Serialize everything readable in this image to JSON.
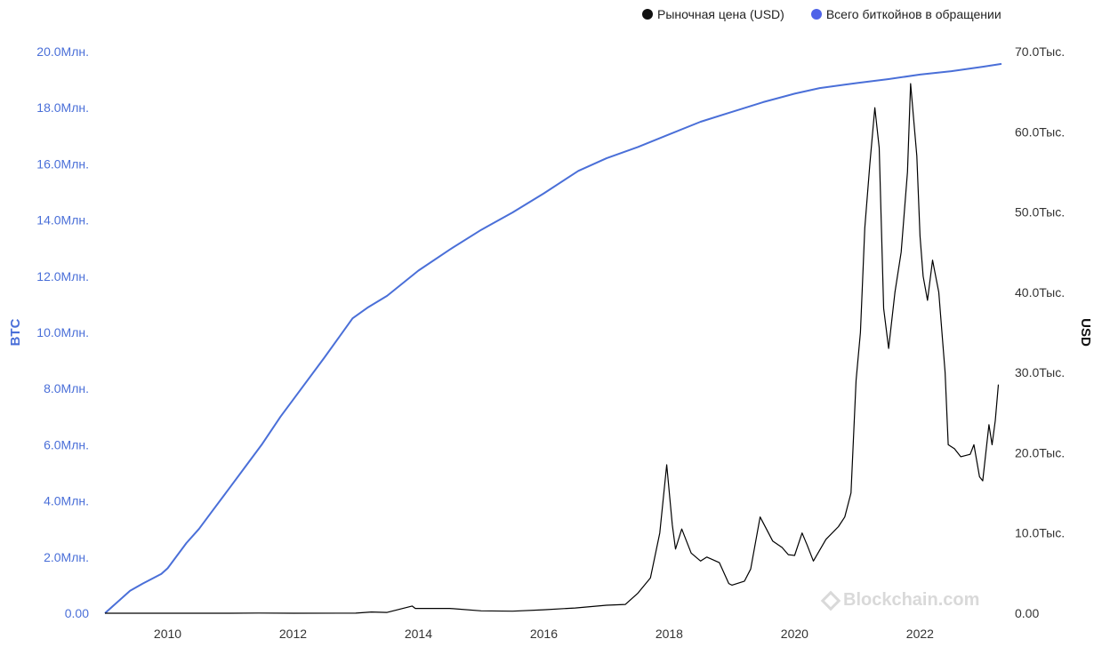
{
  "legend": {
    "price_label": "Рыночная цена (USD)",
    "supply_label": "Всего биткойнов в обращении"
  },
  "watermark": {
    "text": "Blockchain.com"
  },
  "colors": {
    "supply": "#4a6fd8",
    "price": "#000000",
    "left_axis": "#4a6fd8",
    "right_axis": "#333333"
  },
  "chart_data": {
    "type": "line",
    "title": "",
    "y_left_label": "BTC",
    "y_right_label": "USD",
    "x_ticks": [
      "2010",
      "2012",
      "2014",
      "2016",
      "2018",
      "2020",
      "2022"
    ],
    "y_left_ticks": [
      "0.00",
      "2.0Млн.",
      "4.0Млн.",
      "6.0Млн.",
      "8.0Млн.",
      "10.0Млн.",
      "12.0Млн.",
      "14.0Млн.",
      "16.0Млн.",
      "18.0Млн.",
      "20.0Млн."
    ],
    "y_right_ticks": [
      "0.00",
      "10.0Тыс.",
      "20.0Тыс.",
      "30.0Тыс.",
      "40.0Тыс.",
      "50.0Тыс.",
      "60.0Тыс.",
      "70.0Тыс."
    ],
    "xlim": [
      2009.0,
      2023.3
    ],
    "ylim_left": [
      0,
      20000000
    ],
    "ylim_right": [
      0,
      70000
    ],
    "grid": false,
    "legend_position": "top-right",
    "series": [
      {
        "name": "Всего биткойнов в обращении",
        "axis": "left",
        "color": "#4a6fd8",
        "x": [
          2009.0,
          2009.4,
          2009.6,
          2009.9,
          2010.0,
          2010.3,
          2010.5,
          2010.7,
          2011.0,
          2011.3,
          2011.5,
          2011.8,
          2012.0,
          2012.5,
          2012.95,
          2013.2,
          2013.5,
          2014.0,
          2014.5,
          2015.0,
          2015.5,
          2016.0,
          2016.55,
          2017.0,
          2017.5,
          2018.0,
          2018.5,
          2019.0,
          2019.5,
          2020.0,
          2020.4,
          2020.8,
          2021.0,
          2021.5,
          2022.0,
          2022.5,
          2023.0,
          2023.3
        ],
        "y": [
          0,
          800000,
          1050000,
          1400000,
          1600000,
          2500000,
          3000000,
          3600000,
          4500000,
          5400000,
          6000000,
          7000000,
          7600000,
          9100000,
          10500000,
          10900000,
          11300000,
          12200000,
          12950000,
          13650000,
          14270000,
          14950000,
          15750000,
          16200000,
          16600000,
          17050000,
          17500000,
          17850000,
          18200000,
          18500000,
          18700000,
          18820000,
          18880000,
          19020000,
          19180000,
          19300000,
          19460000,
          19560000
        ]
      },
      {
        "name": "Рыночная цена (USD)",
        "axis": "right",
        "color": "#000000",
        "x": [
          2009.0,
          2010.0,
          2011.0,
          2011.45,
          2012.0,
          2013.0,
          2013.25,
          2013.5,
          2013.9,
          2013.95,
          2014.2,
          2014.5,
          2015.0,
          2015.5,
          2016.0,
          2016.5,
          2017.0,
          2017.3,
          2017.5,
          2017.7,
          2017.85,
          2017.96,
          2018.05,
          2018.1,
          2018.2,
          2018.35,
          2018.5,
          2018.6,
          2018.8,
          2018.95,
          2019.0,
          2019.2,
          2019.3,
          2019.45,
          2019.55,
          2019.65,
          2019.8,
          2019.9,
          2020.0,
          2020.12,
          2020.2,
          2020.3,
          2020.5,
          2020.7,
          2020.8,
          2020.9,
          2020.98,
          2021.05,
          2021.12,
          2021.2,
          2021.28,
          2021.35,
          2021.42,
          2021.5,
          2021.6,
          2021.7,
          2021.8,
          2021.85,
          2021.95,
          2022.0,
          2022.05,
          2022.12,
          2022.2,
          2022.3,
          2022.4,
          2022.45,
          2022.55,
          2022.65,
          2022.8,
          2022.86,
          2022.95,
          2023.0,
          2023.05,
          2023.1,
          2023.15,
          2023.2,
          2023.25
        ],
        "y": [
          0,
          0.1,
          0.3,
          20,
          5,
          13,
          150,
          100,
          900,
          600,
          600,
          600,
          300,
          250,
          430,
          650,
          1000,
          1100,
          2500,
          4400,
          10000,
          18500,
          11000,
          8000,
          10500,
          7500,
          6500,
          7000,
          6300,
          3700,
          3500,
          4000,
          5500,
          12000,
          10500,
          9000,
          8200,
          7300,
          7200,
          10000,
          8500,
          6500,
          9200,
          10800,
          12000,
          15000,
          29000,
          35000,
          48000,
          56000,
          63000,
          58000,
          38000,
          33000,
          40000,
          45000,
          55000,
          66000,
          57000,
          47000,
          42000,
          39000,
          44000,
          40000,
          30000,
          21000,
          20500,
          19500,
          19800,
          21000,
          17000,
          16500,
          20000,
          23500,
          21000,
          24000,
          28500
        ]
      }
    ]
  }
}
